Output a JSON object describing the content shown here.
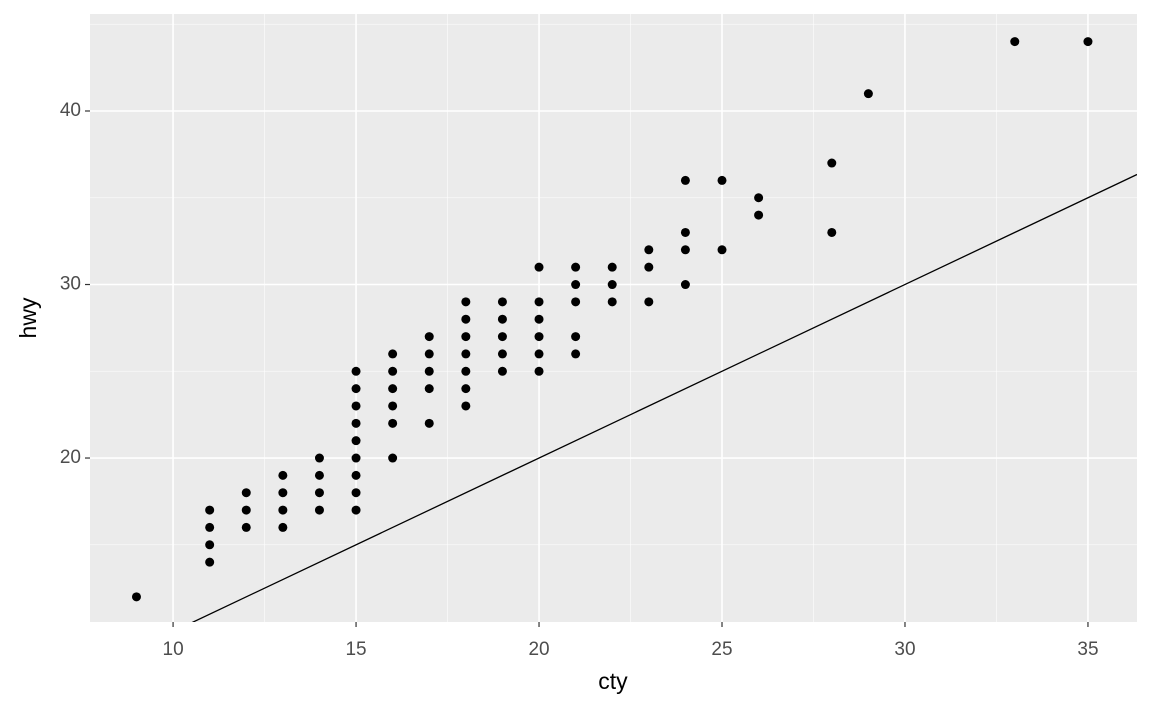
{
  "chart_data": {
    "type": "scatter",
    "xlabel": "cty",
    "ylabel": "hwy",
    "x": [
      9,
      11,
      11,
      11,
      11,
      12,
      12,
      12,
      13,
      13,
      13,
      13,
      14,
      14,
      14,
      14,
      15,
      15,
      15,
      15,
      15,
      15,
      15,
      15,
      15,
      16,
      16,
      16,
      16,
      16,
      16,
      17,
      17,
      17,
      17,
      17,
      18,
      18,
      18,
      18,
      18,
      18,
      18,
      19,
      19,
      19,
      19,
      19,
      20,
      20,
      20,
      20,
      20,
      20,
      21,
      21,
      21,
      21,
      21,
      22,
      22,
      22,
      23,
      23,
      23,
      24,
      24,
      24,
      24,
      25,
      25,
      26,
      26,
      28,
      28,
      29,
      33,
      35
    ],
    "values": [
      12,
      14,
      15,
      16,
      17,
      16,
      17,
      18,
      16,
      17,
      18,
      19,
      17,
      18,
      19,
      20,
      17,
      18,
      19,
      20,
      21,
      22,
      23,
      24,
      25,
      20,
      22,
      23,
      24,
      25,
      26,
      22,
      24,
      25,
      26,
      27,
      23,
      24,
      25,
      26,
      27,
      28,
      29,
      25,
      26,
      27,
      28,
      29,
      25,
      26,
      27,
      28,
      29,
      31,
      26,
      27,
      29,
      30,
      31,
      29,
      30,
      31,
      29,
      31,
      32,
      30,
      32,
      33,
      36,
      32,
      36,
      34,
      35,
      33,
      37,
      41,
      44,
      44
    ],
    "color": "#000000",
    "abline": {
      "intercept": 0,
      "slope": 1
    },
    "xlim": [
      7.73,
      36.34
    ],
    "ylim": [
      10.55,
      45.59
    ],
    "xticks": [
      10,
      15,
      20,
      25,
      30,
      35
    ],
    "yticks": [
      20,
      30,
      40
    ],
    "grid": true
  }
}
